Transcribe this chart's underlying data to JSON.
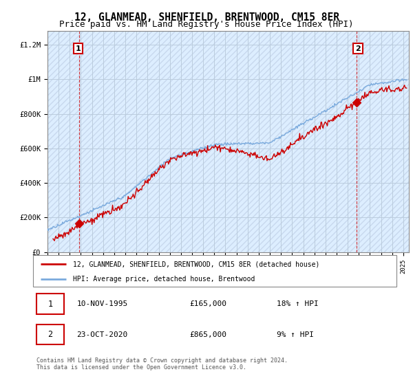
{
  "title": "12, GLANMEAD, SHENFIELD, BRENTWOOD, CM15 8ER",
  "subtitle": "Price paid vs. HM Land Registry's House Price Index (HPI)",
  "ylabel_ticks": [
    "£0",
    "£200K",
    "£400K",
    "£600K",
    "£800K",
    "£1M",
    "£1.2M"
  ],
  "ytick_values": [
    0,
    200000,
    400000,
    600000,
    800000,
    1000000,
    1200000
  ],
  "ylim": [
    0,
    1280000
  ],
  "xlim_start": 1993.0,
  "xlim_end": 2025.5,
  "sale1_year": 1995.87,
  "sale1_price": 165000,
  "sale1_label": "1",
  "sale2_year": 2020.81,
  "sale2_price": 865000,
  "sale2_label": "2",
  "price_line_color": "#cc0000",
  "hpi_line_color": "#7aaadd",
  "background_color": "#ddeeff",
  "hatch_color": "#c8d8ee",
  "grid_color": "#bbccdd",
  "title_fontsize": 10.5,
  "subtitle_fontsize": 9,
  "legend_line1": "12, GLANMEAD, SHENFIELD, BRENTWOOD, CM15 8ER (detached house)",
  "legend_line2": "HPI: Average price, detached house, Brentwood",
  "ann1_date": "10-NOV-1995",
  "ann1_price": "£165,000",
  "ann1_hpi": "18% ↑ HPI",
  "ann2_date": "23-OCT-2020",
  "ann2_price": "£865,000",
  "ann2_hpi": "9% ↑ HPI",
  "footer": "Contains HM Land Registry data © Crown copyright and database right 2024.\nThis data is licensed under the Open Government Licence v3.0."
}
